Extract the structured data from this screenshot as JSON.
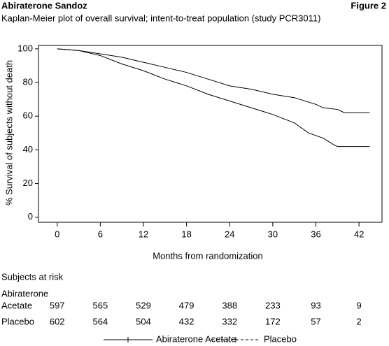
{
  "header": {
    "title": "Abiraterone Sandoz",
    "figure": "Figure 2"
  },
  "chart_data": {
    "type": "line",
    "subtitle": "Kaplan-Meier plot of overall survival; intent-to-treat population (study PCR3011)",
    "x_label": "Months from randomization",
    "y_label": "% Survival of subjects without death",
    "xlim": [
      -2.6,
      45.2
    ],
    "ylim": [
      -3,
      102
    ],
    "xticks": [
      0,
      6,
      12,
      18,
      24,
      30,
      36,
      42
    ],
    "yticks": [
      0,
      20,
      40,
      60,
      80,
      100
    ],
    "series": [
      {
        "name": "Abiraterone Acetate",
        "color": "#000000",
        "dash": false,
        "x": [
          0,
          3,
          6,
          9,
          12,
          15,
          18,
          21,
          24,
          27,
          30,
          33,
          36,
          37,
          39,
          40,
          43.5
        ],
        "values": [
          100,
          99,
          97,
          95,
          92,
          89,
          86,
          82,
          78,
          76,
          73,
          71,
          67,
          65,
          64,
          62,
          62
        ]
      },
      {
        "name": "Placebo",
        "color": "#000000",
        "dash": true,
        "x": [
          0,
          3,
          6,
          9,
          12,
          15,
          18,
          21,
          24,
          27,
          30,
          33,
          35,
          37,
          38.5,
          39,
          43.5
        ],
        "values": [
          100,
          99,
          96,
          91,
          87,
          82,
          78,
          73,
          69,
          65,
          61,
          56,
          50,
          47,
          43,
          42,
          42
        ]
      }
    ]
  },
  "risk_table": {
    "title": "Subjects at risk",
    "rows": [
      {
        "label": [
          "Abiraterone",
          "Acetate"
        ],
        "counts": [
          "597",
          "565",
          "529",
          "479",
          "388",
          "233",
          "93",
          "9"
        ]
      },
      {
        "label": [
          "Placebo"
        ],
        "counts": [
          "602",
          "564",
          "504",
          "432",
          "332",
          "172",
          "57",
          "2"
        ]
      }
    ]
  }
}
